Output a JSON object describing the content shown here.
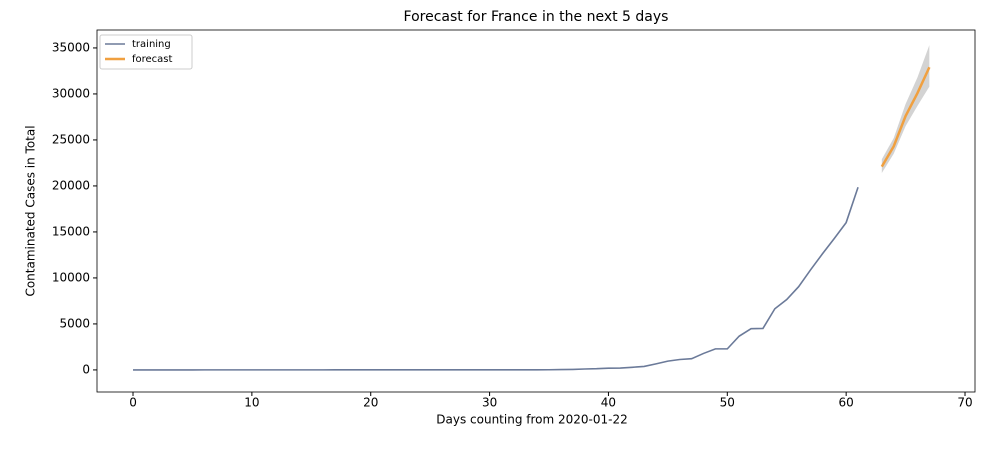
{
  "chart_data": {
    "type": "line",
    "title": "Forecast for France in the next 5 days",
    "x_label": "Days counting from 2020-01-22",
    "y_label": "Contaminated Cases in Total",
    "xlim": [
      -3.03,
      70.84
    ],
    "xticks": [
      0,
      10,
      20,
      30,
      40,
      50,
      60,
      70
    ],
    "ylim": [
      -2400,
      36950
    ],
    "yticks": [
      0,
      5000,
      10000,
      15000,
      20000,
      25000,
      30000,
      35000
    ],
    "grid": false,
    "legend": "upper left",
    "series": [
      {
        "name": "training",
        "color": "#6b7a99",
        "x": [
          0,
          1,
          2,
          3,
          4,
          5,
          6,
          7,
          8,
          9,
          10,
          11,
          12,
          13,
          14,
          15,
          16,
          17,
          18,
          19,
          20,
          21,
          22,
          23,
          24,
          25,
          26,
          27,
          28,
          29,
          30,
          31,
          32,
          33,
          34,
          35,
          36,
          37,
          38,
          39,
          40,
          41,
          42,
          43,
          44,
          45,
          46,
          47,
          48,
          49,
          50,
          51,
          52,
          53,
          54,
          55,
          56,
          57,
          58,
          59,
          60,
          61
        ],
        "values": [
          0,
          0,
          2,
          3,
          3,
          3,
          4,
          5,
          5,
          5,
          6,
          6,
          6,
          6,
          6,
          6,
          6,
          11,
          11,
          11,
          11,
          11,
          11,
          11,
          12,
          12,
          12,
          12,
          12,
          12,
          12,
          12,
          12,
          12,
          12,
          18,
          38,
          57,
          100,
          130,
          191,
          204,
          288,
          380,
          656,
          957,
          1134,
          1217,
          1792,
          2289,
          2289,
          3672,
          4480,
          4513,
          6650,
          7652,
          9043,
          10871,
          12612,
          14282,
          16018,
          19856
        ]
      },
      {
        "name": "forecast",
        "color": "#f0a040",
        "band_color": "#c8c8c8",
        "x": [
          63,
          64,
          65,
          66,
          67
        ],
        "values": [
          22100,
          24300,
          27600,
          30100,
          32900
        ],
        "lower": [
          21400,
          23500,
          26500,
          28700,
          30800
        ],
        "upper": [
          22900,
          25200,
          28900,
          31800,
          35300
        ]
      }
    ]
  }
}
